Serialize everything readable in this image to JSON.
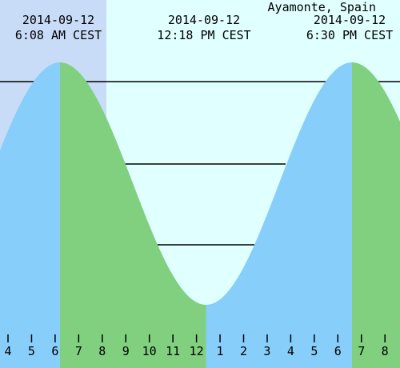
{
  "location": "Ayamonte, Spain",
  "events": [
    {
      "date": "2014-09-12",
      "time": "6:08 AM CEST"
    },
    {
      "date": "2014-09-12",
      "time": "12:18 PM CEST"
    },
    {
      "date": "2014-09-12",
      "time": "6:30 PM CEST"
    }
  ],
  "hours": [
    "4",
    "5",
    "6",
    "7",
    "8",
    "9",
    "10",
    "11",
    "12",
    "1",
    "2",
    "3",
    "4",
    "5",
    "6",
    "7",
    "8"
  ]
}
